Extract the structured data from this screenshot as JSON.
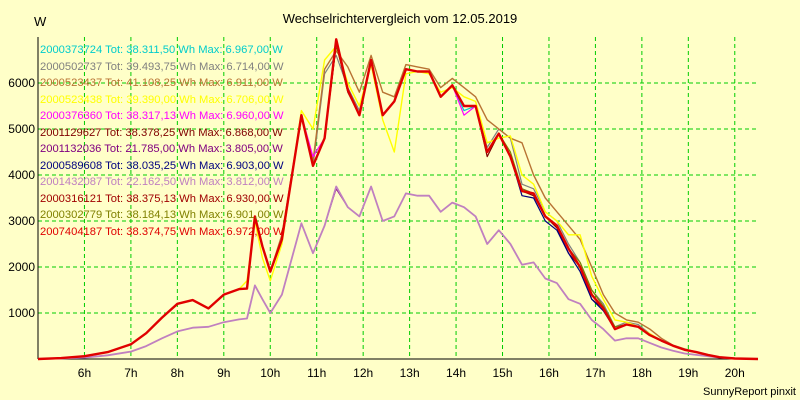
{
  "chart_data": {
    "type": "line",
    "title": "Wechselrichtervergleich vom 12.05.2019",
    "ylabel": "W",
    "footer": "SunnyReport pinxit",
    "xlim": [
      5.0,
      20.5
    ],
    "ylim": [
      0,
      7000
    ],
    "x_ticks": [
      {
        "value": 6,
        "label": "6h"
      },
      {
        "value": 7,
        "label": "7h"
      },
      {
        "value": 8,
        "label": "8h"
      },
      {
        "value": 9,
        "label": "9h"
      },
      {
        "value": 10,
        "label": "10h"
      },
      {
        "value": 11,
        "label": "11h"
      },
      {
        "value": 12,
        "label": "12h"
      },
      {
        "value": 13,
        "label": "13h"
      },
      {
        "value": 14,
        "label": "14h"
      },
      {
        "value": 15,
        "label": "15h"
      },
      {
        "value": 16,
        "label": "16h"
      },
      {
        "value": 17,
        "label": "17h"
      },
      {
        "value": 18,
        "label": "18h"
      },
      {
        "value": 19,
        "label": "19h"
      },
      {
        "value": 20,
        "label": "20h"
      }
    ],
    "y_ticks": [
      {
        "value": 1000,
        "label": "1000"
      },
      {
        "value": 2000,
        "label": "2000"
      },
      {
        "value": 3000,
        "label": "3000"
      },
      {
        "value": 4000,
        "label": "4000"
      },
      {
        "value": 5000,
        "label": "5000"
      },
      {
        "value": 6000,
        "label": "6000"
      }
    ],
    "grid": true,
    "background_color": "#FFFFC8",
    "grid_color": "#00CC00",
    "legend_position": "top-left",
    "legend": [
      {
        "text": "2000373724 Tot: 38.311,50 Wh Max: 6.967,00 W",
        "color": "#00CCCC"
      },
      {
        "text": "2000502737 Tot: 39.493,75 Wh Max: 6.714,00 W",
        "color": "#808080"
      },
      {
        "text": "2000523437 Tot: 41.108,25 Wh Max: 6.911,00 W",
        "color": "#B87333"
      },
      {
        "text": "2000523438 Tot: 39.390,00 Wh Max: 6.706,00 W",
        "color": "#FFFF00"
      },
      {
        "text": "2000376360 Tot: 38.317,13 Wh Max: 6.960,00 W",
        "color": "#FF00FF"
      },
      {
        "text": "2001129627 Tot: 38.378,25 Wh Max: 6.868,00 W",
        "color": "#800000"
      },
      {
        "text": "2001132036 Tot: 21.785,00 Wh Max: 3.805,00 W",
        "color": "#800080"
      },
      {
        "text": "2000589608 Tot: 38.035,25 Wh Max: 6.903,00 W",
        "color": "#000080"
      },
      {
        "text": "2001432087 Tot: 22.162,50 Wh Max: 3.812,00 W",
        "color": "#C080C0"
      },
      {
        "text": "2000316121 Tot: 38.375,13 Wh Max: 6.930,00 W",
        "color": "#A00000"
      },
      {
        "text": "2000302779 Tot: 38.184,13 Wh Max: 6.901,00 W",
        "color": "#808000"
      },
      {
        "text": "2007404187 Tot: 38.374,75 Wh Max: 6.972,00 W",
        "color": "#E00000"
      }
    ],
    "x": [
      5.0,
      5.5,
      6.0,
      6.5,
      7.0,
      7.33,
      7.67,
      8.0,
      8.33,
      8.67,
      9.0,
      9.33,
      9.5,
      9.67,
      9.83,
      10.0,
      10.25,
      10.67,
      10.92,
      11.17,
      11.42,
      11.67,
      11.92,
      12.17,
      12.42,
      12.67,
      12.92,
      13.17,
      13.42,
      13.67,
      13.92,
      14.17,
      14.42,
      14.67,
      14.92,
      15.17,
      15.42,
      15.67,
      15.92,
      16.17,
      16.42,
      16.67,
      16.92,
      17.17,
      17.42,
      17.67,
      17.92,
      18.17,
      18.42,
      18.67,
      18.92,
      19.17,
      19.42,
      19.67,
      20.0,
      20.5
    ],
    "series": [
      {
        "name": "2000373724",
        "color": "#00CCCC",
        "width": 1.2,
        "values": [
          0,
          20,
          60,
          150,
          320,
          560,
          900,
          1200,
          1280,
          1100,
          1400,
          1520,
          1530,
          3100,
          2450,
          1900,
          2600,
          5300,
          4200,
          4800,
          6850,
          5850,
          5300,
          6500,
          5300,
          5600,
          6300,
          6250,
          6250,
          5700,
          5950,
          5400,
          5500,
          4500,
          4900,
          4400,
          3700,
          3600,
          3100,
          2900,
          2400,
          2000,
          1400,
          1100,
          650,
          750,
          700,
          520,
          400,
          290,
          200,
          150,
          90,
          40,
          10,
          0
        ]
      },
      {
        "name": "2000502737",
        "color": "#808080",
        "width": 1.2,
        "values": [
          0,
          20,
          60,
          150,
          320,
          560,
          900,
          1200,
          1280,
          1100,
          1400,
          1520,
          1530,
          3100,
          2450,
          1900,
          2600,
          5300,
          4200,
          6200,
          6600,
          5900,
          5400,
          6500,
          5300,
          5600,
          6300,
          6250,
          6250,
          5700,
          5950,
          5500,
          5500,
          4600,
          5000,
          4800,
          3800,
          3700,
          3200,
          3000,
          2500,
          2100,
          1500,
          1200,
          700,
          800,
          750,
          550,
          400,
          290,
          200,
          150,
          90,
          40,
          10,
          0
        ]
      },
      {
        "name": "2000523437",
        "color": "#B87333",
        "width": 1.4,
        "values": [
          0,
          20,
          60,
          150,
          320,
          560,
          900,
          1200,
          1280,
          1100,
          1400,
          1520,
          1530,
          3100,
          2450,
          1900,
          2700,
          5300,
          4300,
          6300,
          6700,
          6350,
          5800,
          6600,
          5800,
          5700,
          6400,
          6350,
          6300,
          5900,
          6100,
          5900,
          5700,
          5200,
          5000,
          4800,
          4700,
          4000,
          3500,
          3200,
          2900,
          2600,
          2000,
          1400,
          1000,
          850,
          800,
          650,
          450,
          300,
          220,
          150,
          90,
          40,
          10,
          0
        ]
      },
      {
        "name": "2000523438",
        "color": "#FFFF00",
        "width": 1.4,
        "values": [
          0,
          20,
          60,
          150,
          320,
          560,
          900,
          1200,
          1280,
          1100,
          1400,
          1520,
          1700,
          3000,
          2200,
          1700,
          2500,
          5400,
          5000,
          6500,
          6800,
          6000,
          5500,
          6400,
          5200,
          4500,
          6200,
          6250,
          6200,
          5800,
          5900,
          5700,
          5600,
          4700,
          4800,
          4850,
          4000,
          3800,
          3200,
          3000,
          2700,
          2700,
          1800,
          1300,
          850,
          800,
          700,
          550,
          400,
          290,
          200,
          150,
          90,
          40,
          10,
          0
        ]
      },
      {
        "name": "2000376360",
        "color": "#FF00FF",
        "width": 1.2,
        "values": [
          0,
          20,
          60,
          150,
          320,
          560,
          900,
          1200,
          1280,
          1100,
          1400,
          1520,
          1530,
          3100,
          2450,
          1900,
          2600,
          5300,
          4400,
          4800,
          6850,
          5850,
          5300,
          6500,
          5300,
          5600,
          6300,
          6250,
          6250,
          5700,
          5950,
          5300,
          5500,
          4500,
          4900,
          4400,
          3700,
          3600,
          3100,
          2900,
          2400,
          2000,
          1400,
          1100,
          650,
          750,
          700,
          520,
          400,
          290,
          200,
          150,
          90,
          40,
          10,
          0
        ]
      },
      {
        "name": "2001129627",
        "color": "#800000",
        "width": 1.2,
        "values": [
          0,
          20,
          60,
          150,
          320,
          560,
          900,
          1200,
          1280,
          1100,
          1400,
          1520,
          1530,
          3100,
          2450,
          1900,
          2600,
          5300,
          4200,
          4800,
          6850,
          5800,
          5300,
          6500,
          5300,
          5600,
          6300,
          6250,
          6250,
          5700,
          5950,
          5500,
          5500,
          4400,
          4900,
          4400,
          3650,
          3550,
          3100,
          2850,
          2300,
          2000,
          1300,
          1100,
          650,
          750,
          700,
          520,
          400,
          290,
          200,
          150,
          90,
          40,
          10,
          0
        ]
      },
      {
        "name": "2001132036",
        "color": "#800080",
        "width": 1.0,
        "values": [
          0,
          10,
          30,
          80,
          160,
          280,
          450,
          600,
          680,
          700,
          800,
          860,
          880,
          1600,
          1300,
          1000,
          1400,
          2950,
          2300,
          2900,
          3700,
          3300,
          3100,
          3750,
          3000,
          3100,
          3600,
          3550,
          3550,
          3200,
          3400,
          3300,
          3100,
          2500,
          2800,
          2500,
          2050,
          2100,
          1750,
          1650,
          1300,
          1200,
          850,
          650,
          400,
          450,
          450,
          350,
          250,
          180,
          120,
          90,
          60,
          30,
          10,
          0
        ]
      },
      {
        "name": "2000589608",
        "color": "#000080",
        "width": 1.2,
        "values": [
          0,
          20,
          60,
          150,
          320,
          560,
          900,
          1200,
          1280,
          1100,
          1400,
          1520,
          1530,
          3100,
          2450,
          1900,
          2600,
          5300,
          4200,
          4800,
          6850,
          5850,
          5300,
          6500,
          5300,
          5600,
          6300,
          6250,
          6250,
          5700,
          5950,
          5500,
          5500,
          4500,
          4900,
          4400,
          3550,
          3500,
          3000,
          2800,
          2300,
          1900,
          1300,
          1050,
          650,
          750,
          700,
          520,
          400,
          290,
          200,
          150,
          90,
          40,
          10,
          0
        ]
      },
      {
        "name": "2001432087",
        "color": "#C080C0",
        "width": 1.8,
        "values": [
          0,
          10,
          30,
          80,
          160,
          280,
          450,
          600,
          680,
          700,
          800,
          860,
          880,
          1600,
          1300,
          1000,
          1400,
          2950,
          2300,
          2900,
          3750,
          3300,
          3100,
          3750,
          3000,
          3100,
          3600,
          3550,
          3550,
          3200,
          3400,
          3300,
          3100,
          2500,
          2800,
          2500,
          2050,
          2100,
          1750,
          1650,
          1300,
          1200,
          850,
          650,
          400,
          450,
          450,
          350,
          250,
          180,
          120,
          90,
          60,
          30,
          10,
          0
        ]
      },
      {
        "name": "2000316121",
        "color": "#A00000",
        "width": 1.4,
        "values": [
          0,
          20,
          60,
          150,
          320,
          560,
          900,
          1200,
          1280,
          1100,
          1400,
          1520,
          1530,
          3100,
          2450,
          1900,
          2600,
          5300,
          4200,
          4800,
          6850,
          5850,
          5300,
          6500,
          5300,
          5600,
          6300,
          6250,
          6250,
          5700,
          5950,
          5500,
          5500,
          4500,
          4900,
          4400,
          3650,
          3600,
          3100,
          2900,
          2400,
          2000,
          1400,
          1100,
          650,
          750,
          700,
          520,
          400,
          290,
          200,
          150,
          90,
          40,
          10,
          0
        ]
      },
      {
        "name": "2000302779",
        "color": "#808000",
        "width": 1.2,
        "values": [
          0,
          20,
          60,
          150,
          320,
          560,
          900,
          1200,
          1280,
          1100,
          1400,
          1520,
          1530,
          3100,
          2450,
          1900,
          2600,
          5300,
          4200,
          4800,
          6850,
          5850,
          5300,
          6500,
          5300,
          5600,
          6300,
          6250,
          6250,
          5700,
          5950,
          5500,
          5500,
          4500,
          4900,
          4500,
          3700,
          3600,
          3100,
          2900,
          2400,
          2100,
          1500,
          1150,
          700,
          750,
          700,
          520,
          400,
          290,
          200,
          150,
          90,
          40,
          10,
          0
        ]
      },
      {
        "name": "2007404187",
        "color": "#E00000",
        "width": 2.4,
        "values": [
          0,
          20,
          60,
          150,
          320,
          560,
          900,
          1200,
          1280,
          1100,
          1400,
          1520,
          1530,
          3100,
          2450,
          1900,
          2600,
          5300,
          4200,
          4800,
          6950,
          5850,
          5300,
          6500,
          5300,
          5600,
          6300,
          6250,
          6250,
          5700,
          5950,
          5500,
          5500,
          4500,
          4900,
          4400,
          3650,
          3600,
          3100,
          2900,
          2400,
          2000,
          1400,
          1100,
          650,
          750,
          700,
          520,
          400,
          290,
          200,
          150,
          90,
          40,
          10,
          0
        ]
      }
    ]
  }
}
